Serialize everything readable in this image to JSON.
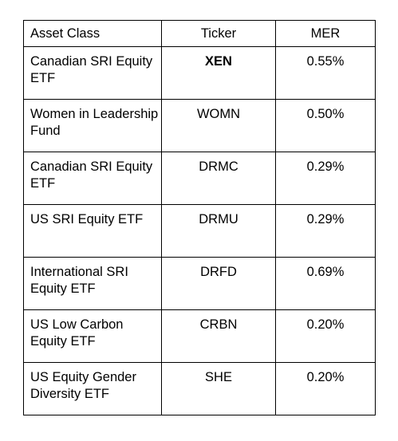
{
  "table": {
    "headers": [
      "Asset Class",
      "Ticker",
      "MER"
    ],
    "rows": [
      {
        "asset_class": "Canadian SRI Equity ETF",
        "ticker": "XEN",
        "mer": "0.55%"
      },
      {
        "asset_class": "Women in Leadership Fund",
        "ticker": "WOMN",
        "mer": "0.50%"
      },
      {
        "asset_class": "Canadian SRI Equity ETF",
        "ticker": "DRMC",
        "mer": "0.29%"
      },
      {
        "asset_class": "US SRI Equity ETF",
        "ticker": "DRMU",
        "mer": "0.29%"
      },
      {
        "asset_class": "International SRI Equity ETF",
        "ticker": "DRFD",
        "mer": "0.69%"
      },
      {
        "asset_class": "US Low Carbon Equity ETF",
        "ticker": "CRBN",
        "mer": "0.20%"
      },
      {
        "asset_class": "US Equity Gender Diversity ETF",
        "ticker": "SHE",
        "mer": "0.20%"
      }
    ]
  }
}
